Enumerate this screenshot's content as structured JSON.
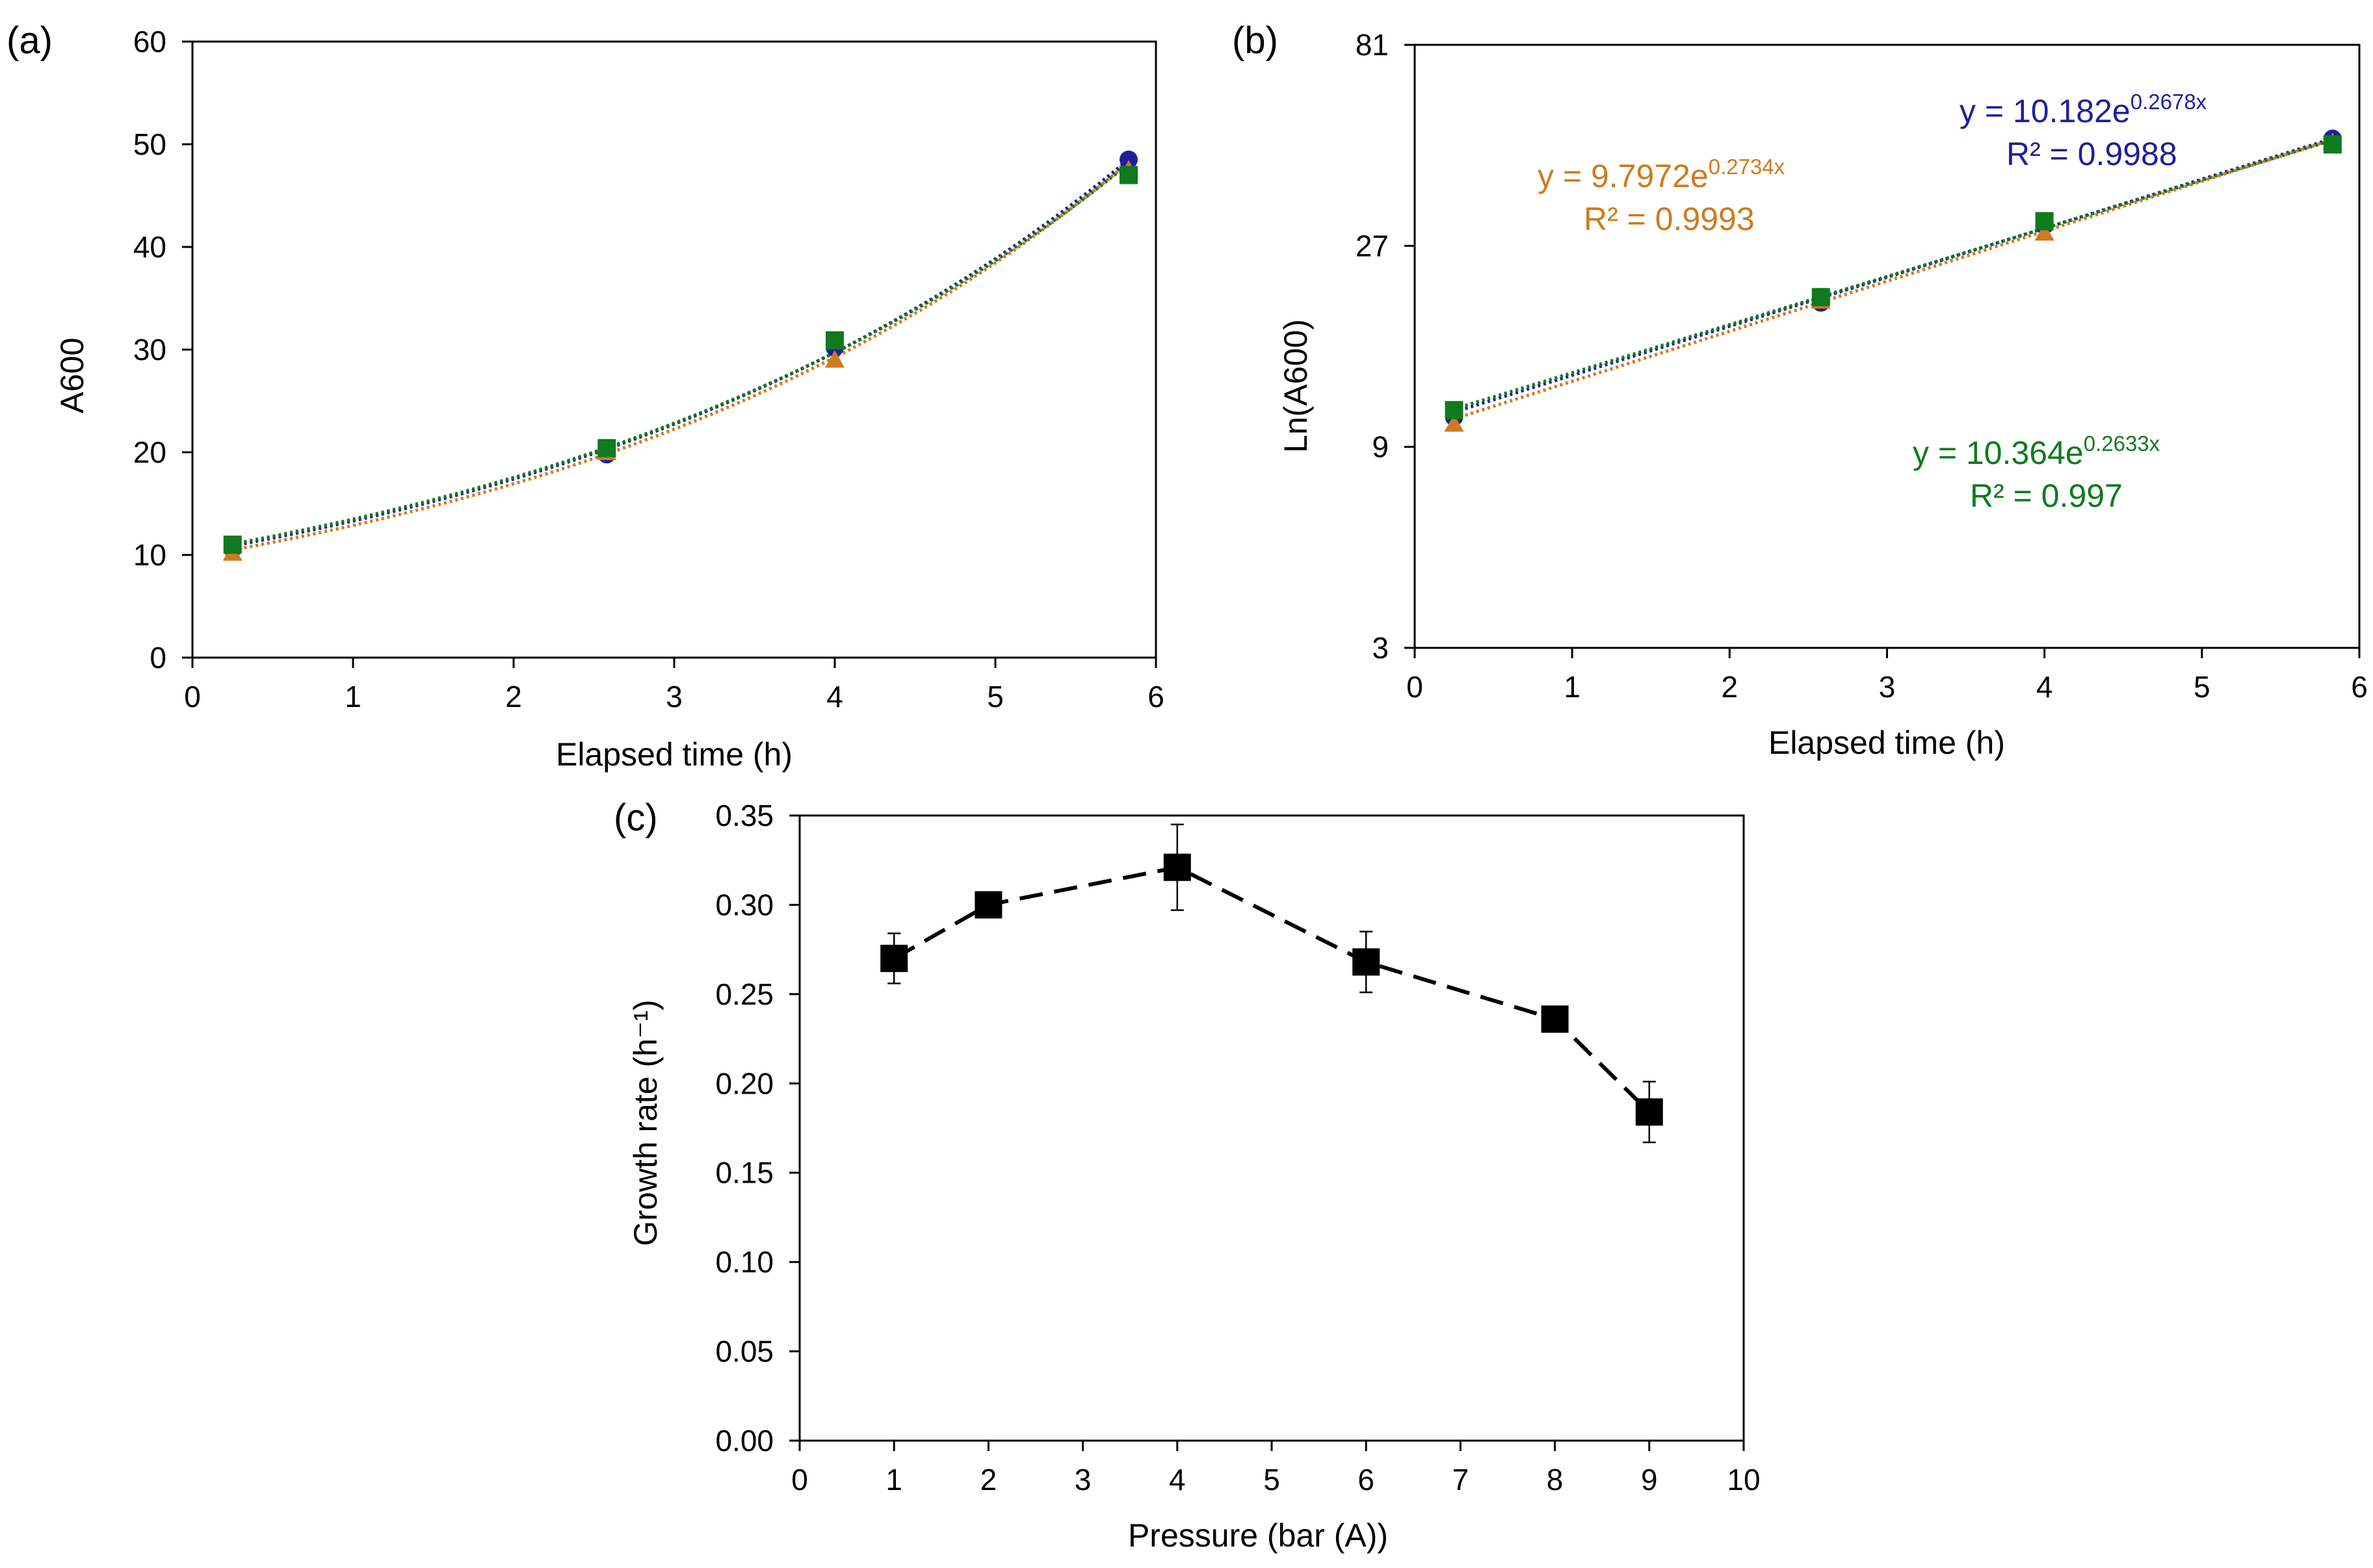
{
  "chart_data": [
    {
      "panel": "a",
      "panel_label": "(a)",
      "type": "scatter",
      "xlabel": "Elapsed time (h)",
      "ylabel": "A600",
      "xlim": [
        0,
        6
      ],
      "ylim": [
        0,
        60
      ],
      "xticks": [
        0,
        1,
        2,
        3,
        4,
        5,
        6
      ],
      "yticks": [
        0,
        10,
        20,
        30,
        40,
        50,
        60
      ],
      "xtick_labels": [
        "0",
        "1",
        "2",
        "3",
        "4",
        "5",
        "6"
      ],
      "ytick_labels": [
        "0",
        "10",
        "20",
        "30",
        "40",
        "50",
        "60"
      ],
      "x": [
        0.25,
        2.58,
        4.0,
        5.83
      ],
      "series": [
        {
          "name": "blue",
          "marker": "circle",
          "values": [
            10.6,
            19.8,
            30.2,
            48.5
          ],
          "fit": {
            "a": 10.182,
            "b": 0.2678
          }
        },
        {
          "name": "orange",
          "marker": "triangle",
          "values": [
            10.2,
            20.0,
            29.0,
            47.5
          ],
          "fit": {
            "a": 9.7972,
            "b": 0.2734
          }
        },
        {
          "name": "green",
          "marker": "square",
          "values": [
            11.0,
            20.4,
            30.9,
            47.0
          ],
          "fit": {
            "a": 10.364,
            "b": 0.2633
          }
        }
      ],
      "grid": false
    },
    {
      "panel": "b",
      "panel_label": "(b)",
      "type": "scatter",
      "scale_y": "log",
      "xlabel": "Elapsed time (h)",
      "ylabel": "Ln(A600)",
      "xlim": [
        0,
        6
      ],
      "ylim": [
        3,
        81
      ],
      "xticks": [
        0,
        1,
        2,
        3,
        4,
        5,
        6
      ],
      "yticks": [
        3,
        9,
        27,
        81
      ],
      "xtick_labels": [
        "0",
        "1",
        "2",
        "3",
        "4",
        "5",
        "6"
      ],
      "ytick_labels": [
        "3",
        "9",
        "27",
        "81"
      ],
      "x": [
        0.25,
        2.58,
        4.0,
        5.83
      ],
      "series": [
        {
          "name": "blue",
          "marker": "circle",
          "values": [
            10.6,
            19.8,
            30.2,
            48.5
          ],
          "fit": {
            "a": 10.182,
            "b": 0.2678
          }
        },
        {
          "name": "orange",
          "marker": "triangle",
          "values": [
            10.2,
            20.0,
            29.0,
            47.5
          ],
          "fit": {
            "a": 9.7972,
            "b": 0.2734
          }
        },
        {
          "name": "green",
          "marker": "square",
          "values": [
            11.0,
            20.4,
            30.9,
            47.0
          ],
          "fit": {
            "a": 10.364,
            "b": 0.2633
          }
        }
      ],
      "annotations": [
        {
          "series": "blue",
          "eq_main": "y = 10.182e",
          "eq_exp": "0.2678x",
          "r2": "R² = 0.9988"
        },
        {
          "series": "orange",
          "eq_main": "y = 9.7972e",
          "eq_exp": "0.2734x",
          "r2": "R² = 0.9993"
        },
        {
          "series": "green",
          "eq_main": "y = 10.364e",
          "eq_exp": "0.2633x",
          "r2": "R² = 0.997"
        }
      ],
      "grid": false
    },
    {
      "panel": "c",
      "panel_label": "(c)",
      "type": "line",
      "line_style": "dashed",
      "xlabel": "Pressure (bar (A))",
      "ylabel": "Growth rate (h⁻¹)",
      "xlim": [
        0,
        10
      ],
      "ylim": [
        0,
        0.35
      ],
      "xticks": [
        0,
        1,
        2,
        3,
        4,
        5,
        6,
        7,
        8,
        9,
        10
      ],
      "yticks": [
        0,
        0.05,
        0.1,
        0.15,
        0.2,
        0.25,
        0.3,
        0.35
      ],
      "xtick_labels": [
        "0",
        "1",
        "2",
        "3",
        "4",
        "5",
        "6",
        "7",
        "8",
        "9",
        "10"
      ],
      "ytick_labels": [
        "0.00",
        "0.05",
        "0.10",
        "0.15",
        "0.20",
        "0.25",
        "0.30",
        "0.35"
      ],
      "x": [
        1,
        2,
        4,
        6,
        8,
        9
      ],
      "values": [
        0.27,
        0.3,
        0.321,
        0.268,
        0.236,
        0.184
      ],
      "errors": [
        0.014,
        0.003,
        0.024,
        0.017,
        0.003,
        0.017
      ],
      "grid": false
    }
  ],
  "colors": {
    "blue": "#1f1f9c",
    "orange": "#d07a1f",
    "green": "#0f7a1e",
    "black": "#000000"
  }
}
